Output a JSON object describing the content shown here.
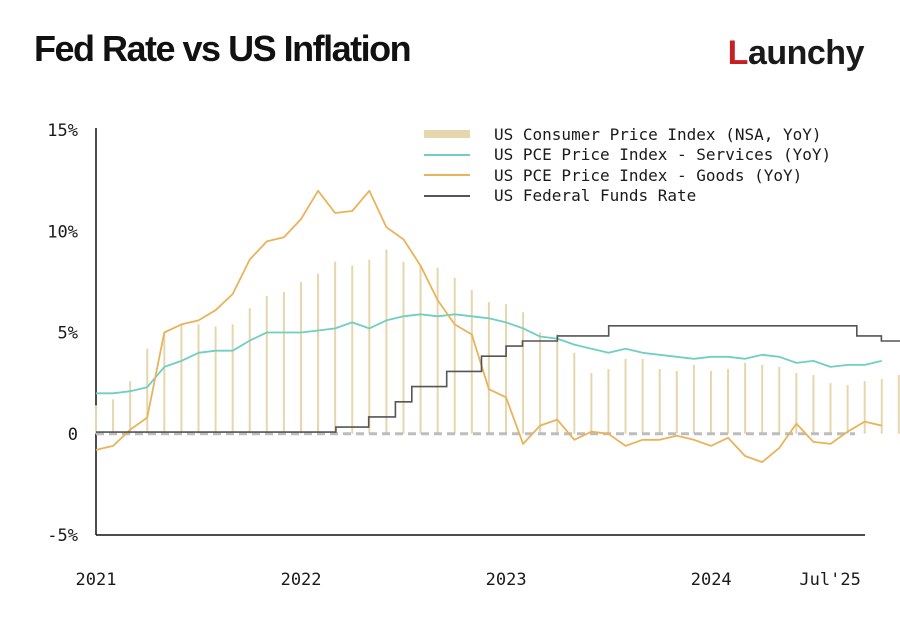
{
  "header": {
    "title": "Fed Rate vs US Inflation"
  },
  "brand": {
    "mark": "L",
    "rest": "aunchy"
  },
  "chart_data": {
    "type": "line",
    "title": "Fed Rate vs US Inflation",
    "xlabel": "",
    "ylabel": "",
    "ylim": [
      -5,
      15
    ],
    "xlim": [
      2021.0,
      2024.75
    ],
    "y_ticks": [
      -5,
      0,
      5,
      10,
      15
    ],
    "y_tick_labels": [
      "-5%",
      "0",
      "5%",
      "10%",
      "15%"
    ],
    "x_ticks": [
      2021.0,
      2022.0,
      2023.0,
      2024.0,
      2024.58
    ],
    "x_tick_labels": [
      "2021",
      "2022",
      "2023",
      "2024",
      "Jul'25"
    ],
    "zero_line": {
      "y": 0,
      "style": "dashed"
    },
    "legend_position": "top-right",
    "grid": false,
    "series": [
      {
        "name": "US Consumer Price Index (NSA, YoY)",
        "kind": "bar",
        "color": "#e5d6ae",
        "x_start": 2021.0,
        "x_step": 0.0833,
        "values": [
          1.4,
          1.7,
          2.6,
          4.2,
          5.0,
          5.4,
          5.4,
          5.3,
          5.4,
          6.2,
          6.8,
          7.0,
          7.5,
          7.9,
          8.5,
          8.3,
          8.6,
          9.1,
          8.5,
          8.3,
          8.2,
          7.7,
          7.1,
          6.5,
          6.4,
          6.0,
          5.0,
          4.9,
          4.0,
          3.0,
          3.2,
          3.7,
          3.7,
          3.2,
          3.1,
          3.4,
          3.1,
          3.2,
          3.5,
          3.4,
          3.3,
          3.0,
          2.9,
          2.5,
          2.4,
          2.6,
          2.7,
          2.9,
          3.0,
          2.8,
          2.4,
          2.3,
          2.4,
          2.7,
          2.7
        ]
      },
      {
        "name": "US PCE Price Index - Services (YoY)",
        "kind": "line",
        "color": "#6fcfc3",
        "x_start": 2021.0,
        "x_step": 0.0833,
        "values": [
          2.0,
          2.0,
          2.1,
          2.3,
          3.3,
          3.6,
          4.0,
          4.1,
          4.1,
          4.6,
          5.0,
          5.0,
          5.0,
          5.1,
          5.2,
          5.5,
          5.2,
          5.6,
          5.8,
          5.9,
          5.8,
          5.9,
          5.8,
          5.7,
          5.5,
          5.2,
          4.8,
          4.7,
          4.4,
          4.2,
          4.0,
          4.2,
          4.0,
          3.9,
          3.8,
          3.7,
          3.8,
          3.8,
          3.7,
          3.9,
          3.8,
          3.5,
          3.6,
          3.3,
          3.4,
          3.4,
          3.6
        ]
      },
      {
        "name": "US PCE Price Index - Goods (YoY)",
        "kind": "line",
        "color": "#e9b35a",
        "x_start": 2021.0,
        "x_step": 0.0833,
        "values": [
          -0.8,
          -0.6,
          0.2,
          0.8,
          5.0,
          5.4,
          5.6,
          6.1,
          6.9,
          8.6,
          9.5,
          9.7,
          10.6,
          12.0,
          10.9,
          11.0,
          12.0,
          10.2,
          9.6,
          8.3,
          6.6,
          5.4,
          4.9,
          2.2,
          1.8,
          -0.5,
          0.4,
          0.7,
          -0.3,
          0.1,
          0.0,
          -0.6,
          -0.3,
          -0.3,
          -0.1,
          -0.3,
          -0.6,
          -0.2,
          -1.1,
          -1.4,
          -0.7,
          0.5,
          -0.4,
          -0.5,
          0.1,
          0.6,
          0.4
        ]
      },
      {
        "name": "US Federal Funds Rate",
        "kind": "step",
        "color": "#555555",
        "x": [
          2021.0,
          2022.17,
          2022.33,
          2022.46,
          2022.54,
          2022.71,
          2022.88,
          2023.0,
          2023.08,
          2023.25,
          2023.5,
          2024.71,
          2024.83,
          2024.96,
          2025.58
        ],
        "values": [
          0.08,
          0.33,
          0.83,
          1.58,
          2.33,
          3.08,
          3.83,
          4.33,
          4.58,
          4.83,
          5.33,
          4.83,
          4.58,
          4.33,
          4.33
        ]
      }
    ]
  }
}
